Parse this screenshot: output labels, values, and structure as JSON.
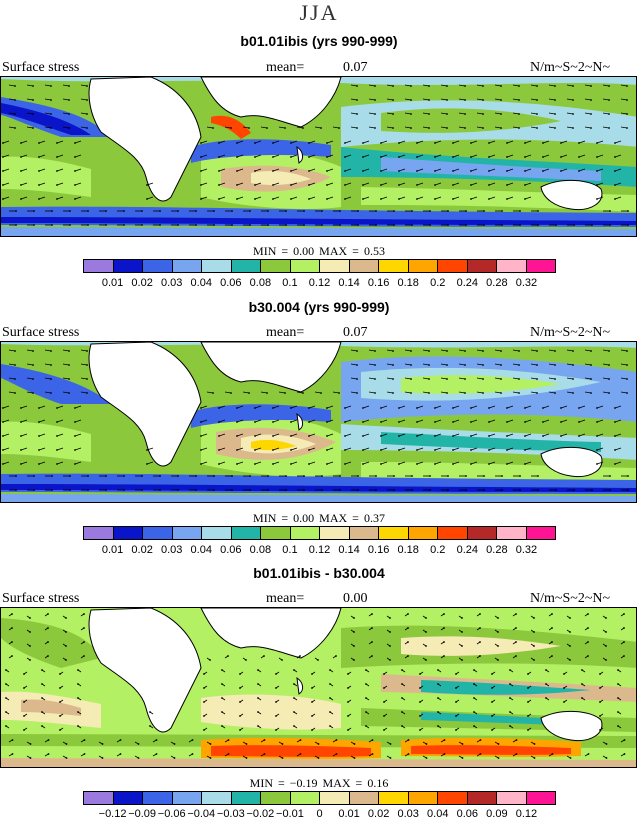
{
  "title": "JJA",
  "units": "N/m~S~2~N~",
  "field_label": "Surface stress",
  "colors": [
    "#9b7ae0",
    "#0a14c8",
    "#3c64e6",
    "#78a5f0",
    "#a8dce8",
    "#23b4a8",
    "#8cc83c",
    "#b4f064",
    "#f5ebb4",
    "#dcb98c",
    "#ffd700",
    "#ffa500",
    "#ff4500",
    "#b42828",
    "#ffb4c8",
    "#ff1493"
  ],
  "panels": [
    {
      "title": "b01.01ibis (yrs 990-999)",
      "mean_label": "mean=",
      "mean_value": "0.07",
      "min_label": "MIN =",
      "min_value": "0.00",
      "max_label": "MAX =",
      "max_value": "0.53",
      "levels": [
        "0.01",
        "0.02",
        "0.03",
        "0.04",
        "0.06",
        "0.08",
        "0.1",
        "0.12",
        "0.14",
        "0.16",
        "0.18",
        "0.2",
        "0.24",
        "0.28",
        "0.32"
      ]
    },
    {
      "title": "b30.004 (yrs 990-999)",
      "mean_label": "mean=",
      "mean_value": "0.07",
      "min_label": "MIN =",
      "min_value": "0.00",
      "max_label": "MAX =",
      "max_value": "0.37",
      "levels": [
        "0.01",
        "0.02",
        "0.03",
        "0.04",
        "0.06",
        "0.08",
        "0.1",
        "0.12",
        "0.14",
        "0.16",
        "0.18",
        "0.2",
        "0.24",
        "0.28",
        "0.32"
      ]
    },
    {
      "title": "b01.01ibis - b30.004",
      "mean_label": "mean=",
      "mean_value": "0.00",
      "min_label": "MIN =",
      "min_value": "−0.19",
      "max_label": "MAX =",
      "max_value": "0.16",
      "levels": [
        "−0.12",
        "−0.09",
        "−0.06",
        "−0.04",
        "−0.03",
        "−0.02",
        "−0.01",
        "0",
        "0.01",
        "0.02",
        "0.03",
        "0.04",
        "0.06",
        "0.09",
        "0.12"
      ]
    }
  ]
}
